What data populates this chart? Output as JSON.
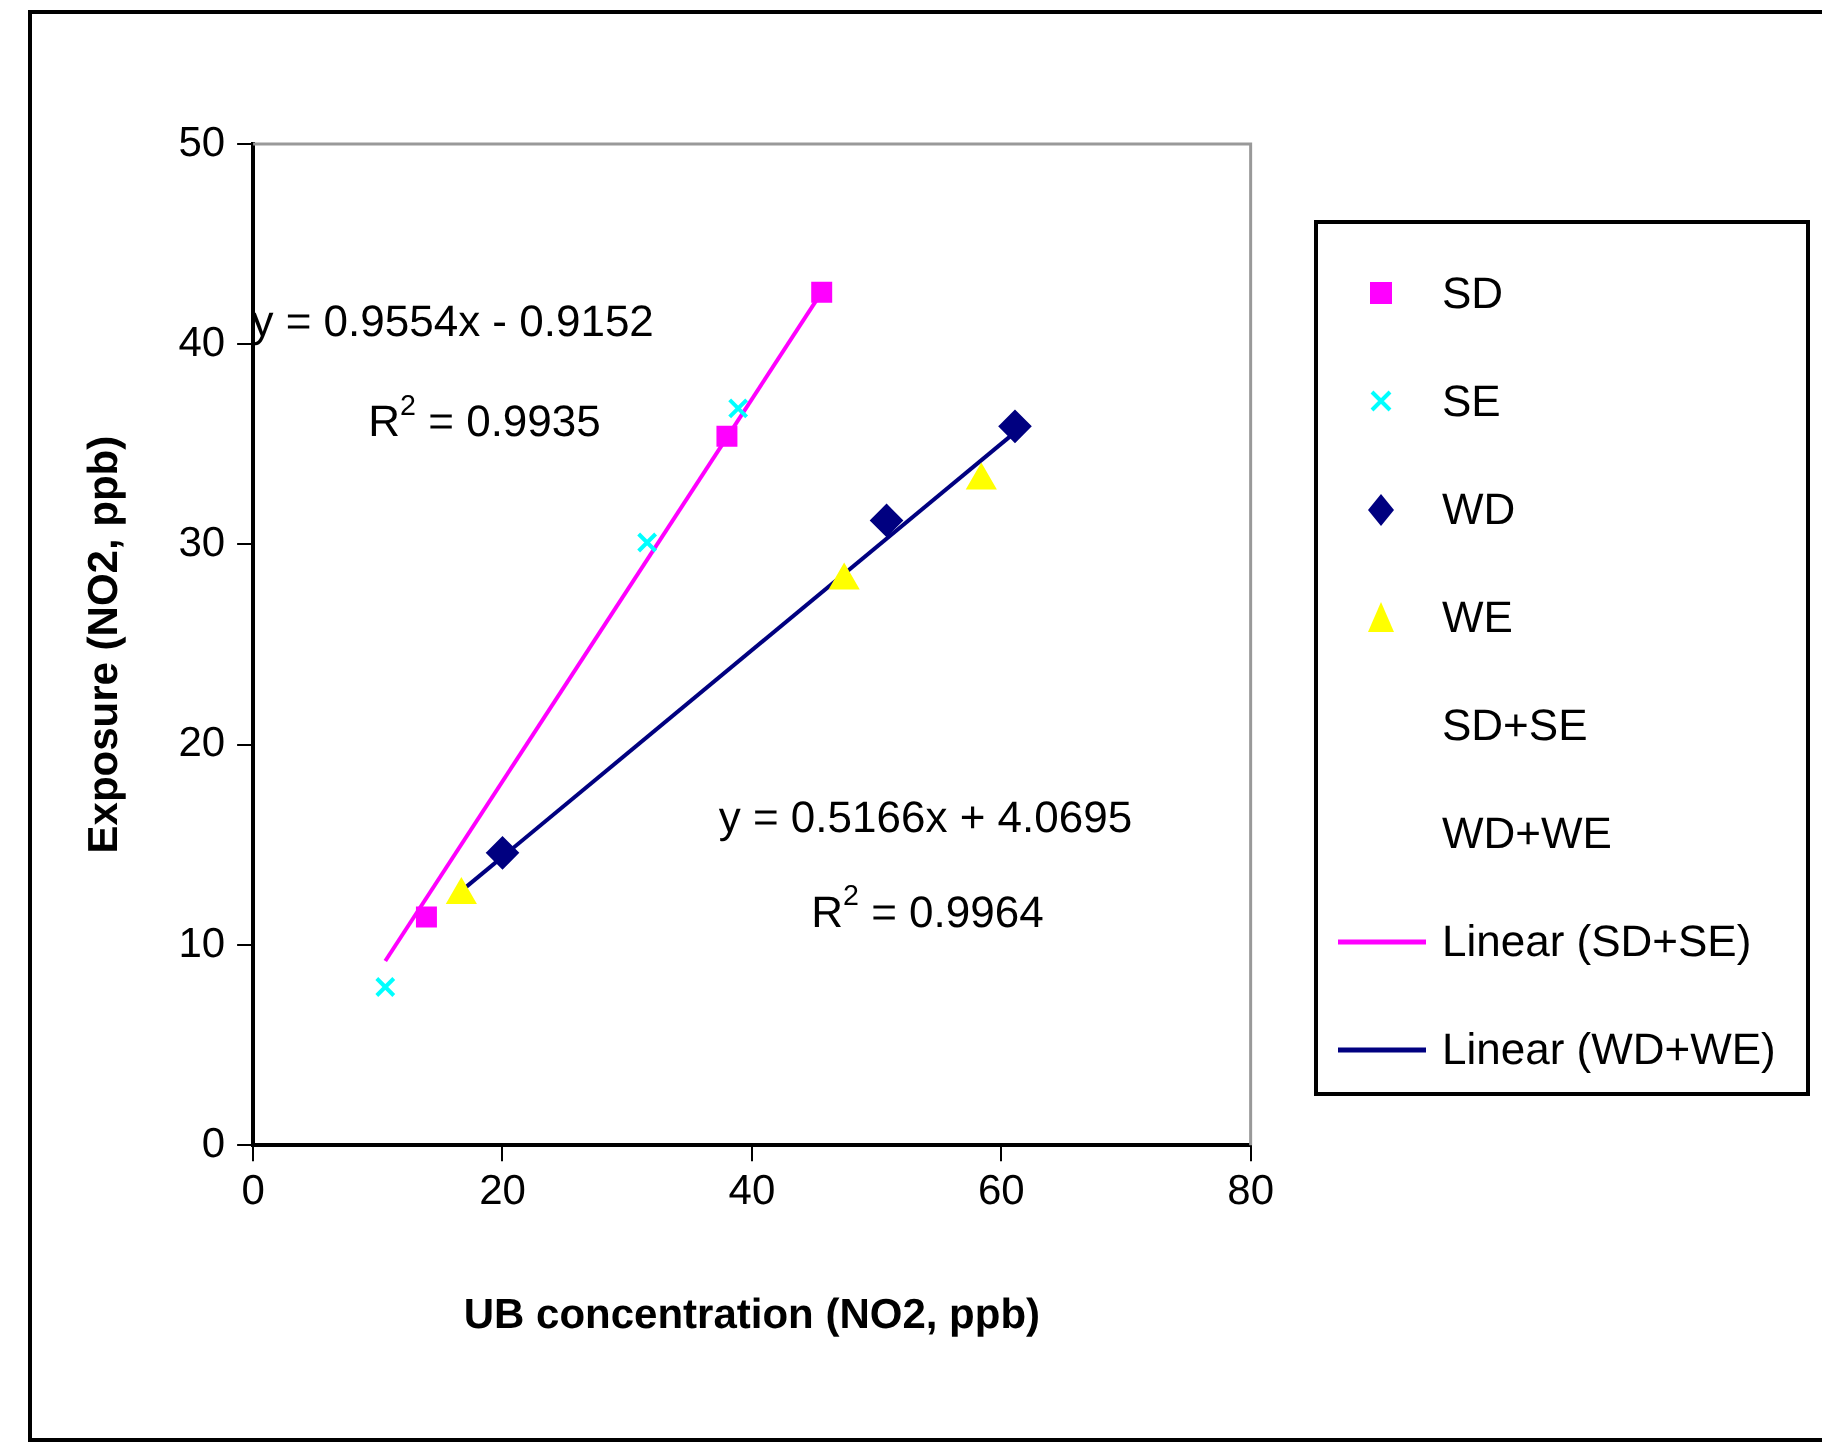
{
  "chart_data": {
    "type": "scatter",
    "xlabel": "UB concentration (NO2, ppb)",
    "ylabel": "Exposure (NO2, ppb)",
    "xlim": [
      0,
      80
    ],
    "xticks": [
      0,
      20,
      40,
      60,
      80
    ],
    "ylim": [
      0,
      50
    ],
    "yticks": [
      0,
      10,
      20,
      30,
      40,
      50
    ],
    "grid": false,
    "legend": "right",
    "series": [
      {
        "name": "SD",
        "type": "scatter",
        "marker": "square",
        "color": "#ff00ff",
        "x": [
          13.9,
          38.0,
          45.6
        ],
        "values": [
          11.4,
          35.4,
          42.6
        ]
      },
      {
        "name": "SE",
        "type": "scatter",
        "marker": "cross",
        "color": "#00ffff",
        "x": [
          10.6,
          31.6,
          38.9
        ],
        "values": [
          7.9,
          30.1,
          36.8
        ]
      },
      {
        "name": "WD",
        "type": "scatter",
        "marker": "diamond",
        "color": "#000080",
        "x": [
          20.0,
          50.8,
          61.1
        ],
        "values": [
          14.6,
          31.2,
          35.9
        ]
      },
      {
        "name": "WE",
        "type": "scatter",
        "marker": "triangle",
        "color": "#ffff00",
        "x": [
          16.7,
          47.4,
          58.4
        ],
        "values": [
          12.5,
          28.2,
          33.2
        ]
      },
      {
        "name": "SD+SE",
        "type": "scatter",
        "marker": "none"
      },
      {
        "name": "WD+WE",
        "type": "scatter",
        "marker": "none"
      },
      {
        "name": "Linear (SD+SE)",
        "type": "line",
        "marker": "none",
        "color": "#ff00ff",
        "x": [
          10.6,
          45.6
        ],
        "values": [
          9.2,
          42.6
        ]
      },
      {
        "name": "Linear (WD+WE)",
        "type": "line",
        "marker": "none",
        "color": "#000080",
        "x": [
          16.7,
          61.1
        ],
        "values": [
          12.7,
          35.6
        ]
      }
    ],
    "annotations": [
      "y = 0.9554x - 0.9152",
      "R$^{2}$ = 0.9935",
      "y = 0.5166x + 4.0695",
      "R$^{2}$ = 0.9964"
    ]
  }
}
